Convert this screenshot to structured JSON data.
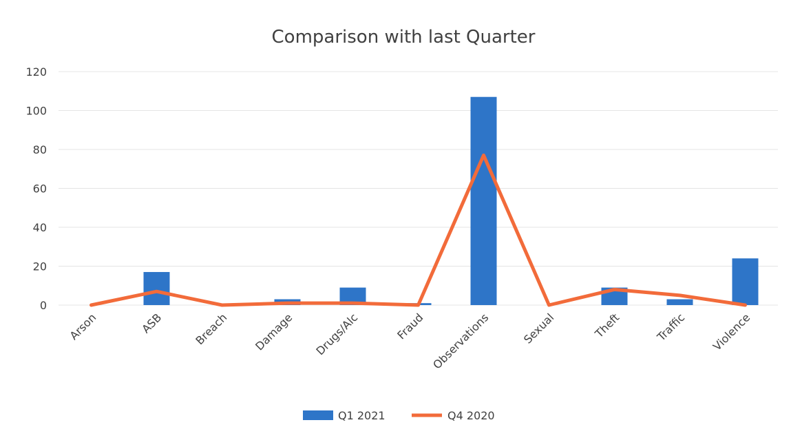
{
  "chart_data": {
    "type": "bar",
    "title": "Comparison with last Quarter",
    "xlabel": "",
    "ylabel": "",
    "categories": [
      "Arson",
      "ASB",
      "Breach",
      "Damage",
      "Drugs/Alc",
      "Fraud",
      "Observations",
      "Sexual",
      "Theft",
      "Traffic",
      "Violence"
    ],
    "ylim": [
      0,
      120
    ],
    "yticks": [
      0,
      20,
      40,
      60,
      80,
      100,
      120
    ],
    "grid": true,
    "legend_position": "bottom",
    "series": [
      {
        "name": "Q1 2021",
        "type": "bar",
        "color": "#2e75c8",
        "values": [
          0,
          17,
          0,
          3,
          9,
          1,
          107,
          0,
          9,
          3,
          24
        ]
      },
      {
        "name": "Q4 2020",
        "type": "line",
        "color": "#f26b3a",
        "values": [
          0,
          7,
          0,
          1,
          1,
          0,
          77,
          0,
          8,
          5,
          0
        ]
      }
    ]
  }
}
